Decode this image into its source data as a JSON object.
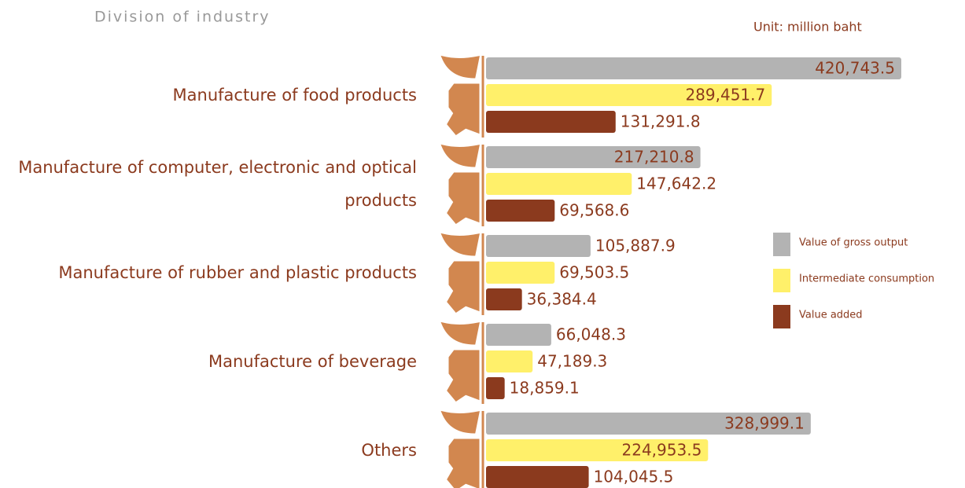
{
  "chart_data": {
    "type": "bar",
    "orientation": "horizontal",
    "title": "Division of industry",
    "subtitle": "Unit: million baht",
    "categories": [
      "Manufacture of food products",
      "Manufacture of computer, electronic and optical products",
      "Manufacture of rubber and plastic products",
      "Manufacture of beverage",
      "Others"
    ],
    "series": [
      {
        "name": "Value of gross output",
        "color": "#b3b3b3",
        "values": [
          420743.5,
          217210.8,
          105887.9,
          66048.3,
          328999.1
        ],
        "value_labels": [
          "420,743.5",
          "217,210.8",
          "105,887.9",
          "66,048.3",
          "328,999.1"
        ]
      },
      {
        "name": "Intermediate consumption",
        "color": "#fff06a",
        "values": [
          289451.7,
          147642.2,
          69503.5,
          47189.3,
          224953.5
        ],
        "value_labels": [
          "289,451.7",
          "147,642.2",
          "69,503.5",
          "47,189.3",
          "224,953.5"
        ]
      },
      {
        "name": "Value added",
        "color": "#8b3a1e",
        "values": [
          131291.8,
          69568.6,
          36384.4,
          18859.1,
          104045.5
        ],
        "value_labels": [
          "131,291.8",
          "69,568.6",
          "36,384.4",
          "18,859.1",
          "104,045.5"
        ]
      }
    ]
  }
}
